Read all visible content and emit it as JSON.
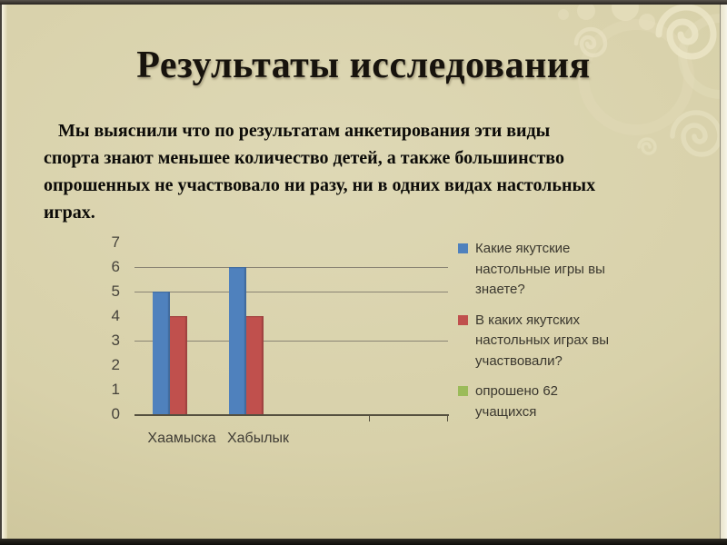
{
  "slide": {
    "title": "Результаты исследования",
    "paragraph_lines": [
      "Мы выяснили что по результатам анкетирования эти виды",
      "спорта знают меньшее количество детей, а также большинство",
      "опрошенных не участвовало ни разу, ни в одних видах настольных",
      "играх."
    ]
  },
  "chart_data": {
    "type": "bar",
    "title": "",
    "xlabel": "",
    "ylabel": "",
    "categories": [
      "Хаамыска",
      "Хабылык"
    ],
    "series": [
      {
        "name": "Какие якутские настольные игры вы знаете?",
        "color": "#4f81bd",
        "values": [
          5,
          6
        ]
      },
      {
        "name": "В каких якутских настольных играх вы участвовали?",
        "color": "#c0504d",
        "values": [
          4,
          4
        ]
      },
      {
        "name": "опрошено 62 учащихся",
        "color": "#9bbb59",
        "values": [
          null,
          null
        ]
      }
    ],
    "ylim": [
      0,
      7
    ],
    "yticks": [
      0,
      1,
      2,
      3,
      4,
      5,
      6,
      7
    ],
    "visible_gridlines": [
      3,
      5,
      6
    ],
    "grid": true,
    "legend_position": "right"
  },
  "theme": {
    "slide_background": "#d8d1aa",
    "title_color": "#17130d",
    "body_text_color": "#0c0b08",
    "axis_text_color": "#45423a",
    "gridline_color": "#8a8474",
    "axis_line_color": "#55503f"
  }
}
